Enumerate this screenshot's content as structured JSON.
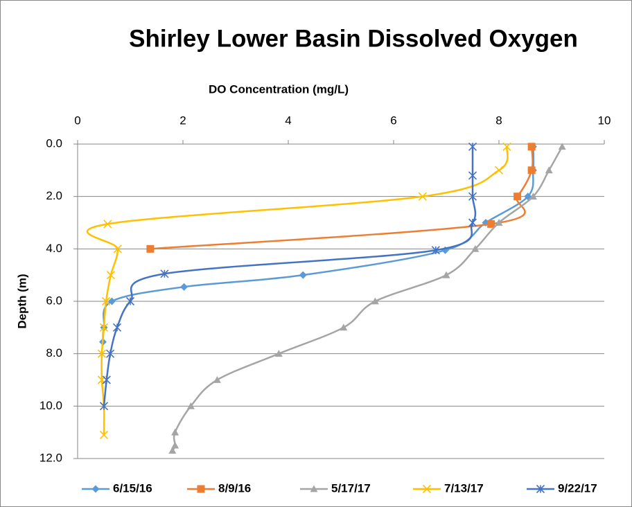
{
  "chart_data": {
    "type": "scatter",
    "title": "Shirley Lower Basin Dissolved Oxygen",
    "x_label": "DO Concentration (mg/L)",
    "y_label": "Depth (m)",
    "xlim": [
      0,
      10
    ],
    "xticks": [
      0,
      2,
      4,
      6,
      8,
      10
    ],
    "ylim": [
      0,
      12
    ],
    "y_reversed": true,
    "yticks": [
      {
        "value": 0,
        "label": "0.0"
      },
      {
        "value": 2,
        "label": "2.0"
      },
      {
        "value": 4,
        "label": "4.0"
      },
      {
        "value": 6,
        "label": "6.0"
      },
      {
        "value": 8,
        "label": "8.0"
      },
      {
        "value": 10,
        "label": "10.0"
      },
      {
        "value": 12,
        "label": "12.0"
      }
    ],
    "grid": true,
    "legend": "bottom",
    "smooth": true,
    "series": [
      {
        "name": "6/15/16",
        "color": "#5B9BD5",
        "marker": "diamond",
        "x": [
          8.65,
          8.65,
          8.55,
          7.75,
          6.98,
          4.28,
          2.02,
          0.65,
          0.5,
          0.48
        ],
        "values": [
          0.1,
          1.0,
          2.0,
          3.0,
          4.05,
          5.0,
          5.45,
          6.0,
          7.0,
          7.55
        ]
      },
      {
        "name": "8/9/16",
        "color": "#ED7D31",
        "marker": "square",
        "x": [
          8.62,
          8.62,
          8.35,
          7.85,
          1.38
        ],
        "values": [
          0.1,
          1.0,
          2.0,
          3.05,
          4.0
        ]
      },
      {
        "name": "5/17/17",
        "color": "#A5A5A5",
        "marker": "triangle",
        "x": [
          9.2,
          8.95,
          8.65,
          8.0,
          7.55,
          7.0,
          5.65,
          5.05,
          3.82,
          2.65,
          2.15,
          1.85,
          1.85,
          1.8
        ],
        "values": [
          0.1,
          1.0,
          2.0,
          3.0,
          4.0,
          5.0,
          6.0,
          7.0,
          8.0,
          9.0,
          10.0,
          11.0,
          11.5,
          11.7
        ]
      },
      {
        "name": "7/13/17",
        "color": "#FFC000",
        "marker": "x",
        "x": [
          8.15,
          8.0,
          6.55,
          0.57,
          0.76,
          0.63,
          0.54,
          0.5,
          0.46,
          0.46,
          0.5,
          0.5
        ],
        "values": [
          0.1,
          1.0,
          2.0,
          3.05,
          4.0,
          5.0,
          6.0,
          7.0,
          8.0,
          9.0,
          10.0,
          11.1
        ]
      },
      {
        "name": "9/22/17",
        "color": "#4472C4",
        "marker": "asterisk",
        "x": [
          7.5,
          7.5,
          7.5,
          7.5,
          6.8,
          1.65,
          1.0,
          0.75,
          0.62,
          0.55,
          0.5
        ],
        "values": [
          0.1,
          1.2,
          2.0,
          3.0,
          4.05,
          4.95,
          6.0,
          7.0,
          8.0,
          9.0,
          10.0
        ]
      }
    ]
  }
}
